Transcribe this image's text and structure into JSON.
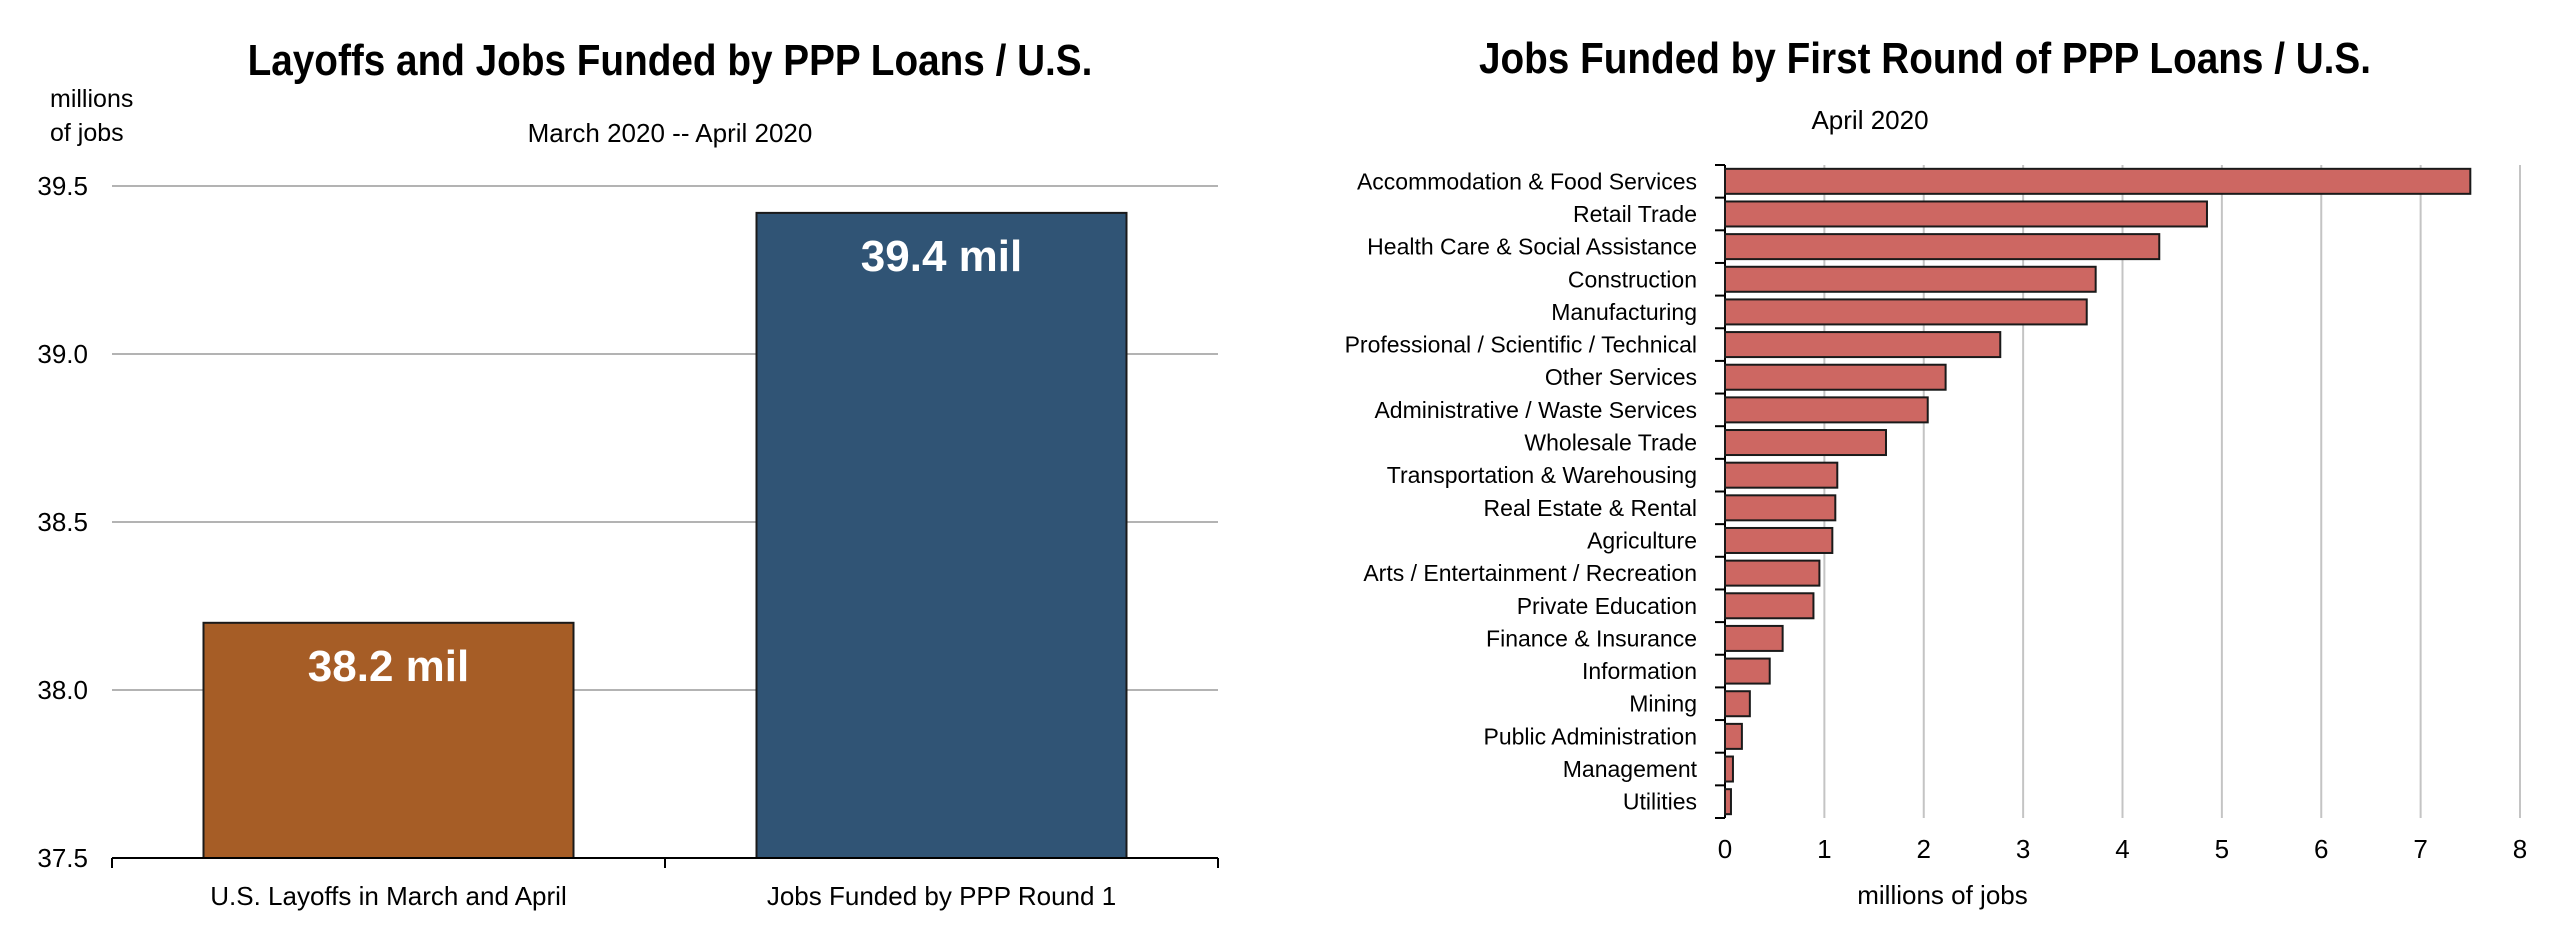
{
  "chart_data": [
    {
      "type": "bar",
      "title": "Layoffs and Jobs Funded by PPP Loans / U.S.",
      "subtitle": "March 2020 -- April 2020",
      "ylabel": "millions of jobs",
      "ylabel_lines": [
        "millions",
        "of jobs"
      ],
      "categories": [
        "U.S. Layoffs in March and April",
        "Jobs Funded by PPP Round 1"
      ],
      "values": [
        38.2,
        39.42
      ],
      "data_labels": [
        "38.2 mil",
        "39.4 mil"
      ],
      "colors": [
        "#a65d26",
        "#305475"
      ],
      "ylim": [
        37.5,
        39.5
      ],
      "yticks": [
        37.5,
        38.0,
        38.5,
        39.0,
        39.5
      ],
      "ytick_labels": [
        "37.5",
        "38.0",
        "38.5",
        "39.0",
        "39.5"
      ],
      "grid": true,
      "legend": "none"
    },
    {
      "type": "bar",
      "orientation": "horizontal",
      "title": "Jobs Funded by First Round of PPP Loans / U.S.",
      "subtitle": "April 2020",
      "xlabel": "millions of jobs",
      "categories": [
        "Accommodation & Food Services",
        "Retail Trade",
        "Health Care & Social Assistance",
        "Construction",
        "Manufacturing",
        "Professional / Scientific / Technical",
        "Other Services",
        "Administrative / Waste Services",
        "Wholesale Trade",
        "Transportation & Warehousing",
        "Real Estate & Rental",
        "Agriculture",
        "Arts / Entertainment / Recreation",
        "Private Education",
        "Finance & Insurance",
        "Information",
        "Mining",
        "Public Administration",
        "Management",
        "Utilities"
      ],
      "values": [
        7.5,
        4.85,
        4.37,
        3.73,
        3.64,
        2.77,
        2.22,
        2.04,
        1.62,
        1.13,
        1.11,
        1.08,
        0.95,
        0.89,
        0.58,
        0.45,
        0.25,
        0.17,
        0.08,
        0.06
      ],
      "color": "#cd6762",
      "xlim": [
        0,
        8
      ],
      "xticks": [
        0,
        1,
        2,
        3,
        4,
        5,
        6,
        7,
        8
      ],
      "xtick_labels": [
        "0",
        "1",
        "2",
        "3",
        "4",
        "5",
        "6",
        "7",
        "8"
      ],
      "grid": true,
      "legend": "none"
    }
  ]
}
